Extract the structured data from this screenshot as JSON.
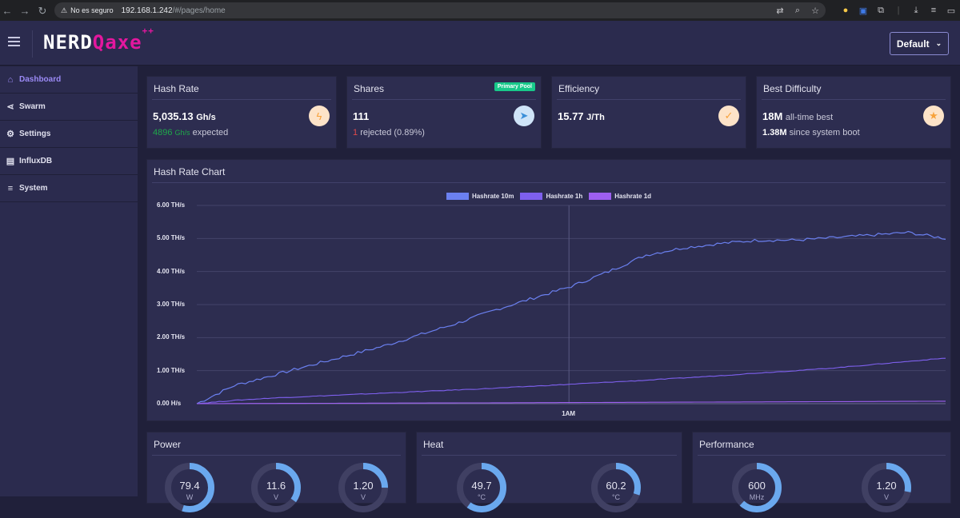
{
  "browser": {
    "security_label": "No es seguro",
    "url_host": "192.168.1.242",
    "url_path": "/#/pages/home"
  },
  "header": {
    "logo_part1": "NERD",
    "logo_part2": "Qaxe",
    "logo_suffix": "++",
    "theme_label": "Default"
  },
  "sidebar": {
    "items": [
      {
        "label": "Dashboard",
        "icon": "home-icon"
      },
      {
        "label": "Swarm",
        "icon": "share-icon"
      },
      {
        "label": "Settings",
        "icon": "gear-icon"
      },
      {
        "label": "InfluxDB",
        "icon": "database-icon"
      },
      {
        "label": "System",
        "icon": "menu-icon"
      }
    ]
  },
  "cards": {
    "hashrate": {
      "title": "Hash Rate",
      "value": "5,035.13",
      "unit": "Gh/s",
      "expected_value": "4896",
      "expected_unit": "Gh/s",
      "expected_label": "expected",
      "icon": "bolt-icon",
      "icon_color": "#f7a23b"
    },
    "shares": {
      "title": "Shares",
      "badge": "Primary Pool",
      "value": "111",
      "rejected_count": "1",
      "rejected_label": "rejected",
      "rejected_pct": "(0.89%)",
      "icon": "send-icon",
      "icon_color": "#4ea8e8"
    },
    "efficiency": {
      "title": "Efficiency",
      "value": "15.77",
      "unit": "J/Th",
      "icon": "check-icon",
      "icon_color": "#f7a23b"
    },
    "difficulty": {
      "title": "Best Difficulty",
      "value": "18M",
      "value_label": "all-time best",
      "since_value": "1.38M",
      "since_label": "since system boot",
      "icon": "star-icon",
      "icon_color": "#f7a23b"
    }
  },
  "chart": {
    "title": "Hash Rate Chart"
  },
  "chart_data": {
    "type": "line",
    "title": "Hash Rate Chart",
    "yticks": [
      "6.00 TH/s",
      "5.00 TH/s",
      "4.00 TH/s",
      "3.00 TH/s",
      "2.00 TH/s",
      "1.00 TH/s",
      "0.00 H/s"
    ],
    "ylim": [
      0,
      6
    ],
    "xticks": [
      "1AM"
    ],
    "grid": true,
    "legend_position": "top-center",
    "x": [
      0,
      0.05,
      0.1,
      0.15,
      0.2,
      0.25,
      0.3,
      0.35,
      0.4,
      0.45,
      0.5,
      0.55,
      0.6,
      0.65,
      0.7,
      0.75,
      0.8,
      0.85,
      0.9,
      0.95,
      1.0
    ],
    "series": [
      {
        "name": "Hashrate 10m",
        "color": "#6b80f0",
        "values": [
          0,
          0.55,
          0.85,
          1.15,
          1.45,
          1.75,
          2.1,
          2.45,
          2.85,
          3.2,
          3.55,
          4.0,
          4.5,
          4.72,
          4.85,
          4.95,
          4.95,
          5.02,
          5.1,
          5.18,
          5.0
        ]
      },
      {
        "name": "Hashrate 1h",
        "color": "#7e60ee",
        "values": [
          0,
          0.1,
          0.17,
          0.22,
          0.27,
          0.32,
          0.37,
          0.42,
          0.47,
          0.53,
          0.59,
          0.65,
          0.71,
          0.78,
          0.85,
          0.93,
          1.0,
          1.08,
          1.18,
          1.28,
          1.38
        ]
      },
      {
        "name": "Hashrate 1d",
        "color": "#9d5ff0",
        "values": [
          0,
          0.005,
          0.008,
          0.011,
          0.014,
          0.017,
          0.02,
          0.023,
          0.026,
          0.03,
          0.034,
          0.038,
          0.042,
          0.046,
          0.05,
          0.054,
          0.058,
          0.062,
          0.066,
          0.07,
          0.075
        ]
      }
    ]
  },
  "power": {
    "title": "Power",
    "gauges": [
      {
        "value": "79.4",
        "unit": "W",
        "fill": 0.55
      },
      {
        "value": "11.6",
        "unit": "V",
        "fill": 0.35
      },
      {
        "value": "1.20",
        "unit": "V",
        "fill": 0.25
      }
    ]
  },
  "heat": {
    "title": "Heat",
    "gauges": [
      {
        "value": "49.7",
        "unit": "°C",
        "fill": 0.6
      },
      {
        "value": "60.2",
        "unit": "°C",
        "fill": 0.3
      }
    ]
  },
  "performance": {
    "title": "Performance",
    "gauges": [
      {
        "value": "600",
        "unit": "MHz",
        "fill": 0.62
      },
      {
        "value": "1.20",
        "unit": "V",
        "fill": 0.28
      }
    ]
  },
  "colors": {
    "accent": "#9b8af5",
    "gauge_fill": "#6aa8ee",
    "gauge_track": "#404063"
  }
}
